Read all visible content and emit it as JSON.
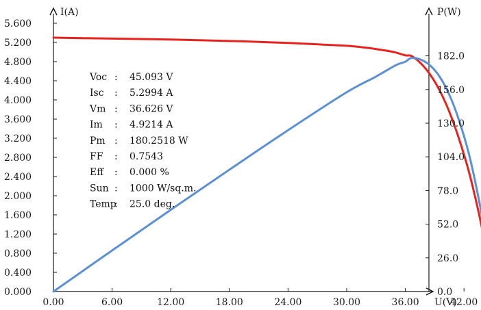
{
  "chart_data": {
    "type": "line",
    "xlabel": "U(V)",
    "ylabel": "I(A)",
    "y2label": "P(W)",
    "xlim": [
      0,
      48
    ],
    "ylim": [
      0,
      5.6
    ],
    "y2lim": [
      0,
      208
    ],
    "x_ticks": [
      "0.00",
      "6.00",
      "12.00",
      "18.00",
      "24.00",
      "30.00",
      "36.00",
      "42.00"
    ],
    "y_ticks": [
      "0.000",
      "0.400",
      "0.800",
      "1.200",
      "1.600",
      "2.000",
      "2.400",
      "2.800",
      "3.200",
      "3.600",
      "4.000",
      "4.400",
      "4.800",
      "5.200",
      "5.600"
    ],
    "y2_ticks": [
      "0.0",
      "26.0",
      "52.0",
      "78.0",
      "104.0",
      "130.0",
      "156.0",
      "182.0"
    ],
    "series": [
      {
        "axis": "left",
        "color": "#e8231e",
        "points": [
          [
            0,
            5.3
          ],
          [
            6,
            5.28
          ],
          [
            12,
            5.26
          ],
          [
            18,
            5.23
          ],
          [
            24,
            5.19
          ],
          [
            28,
            5.15
          ],
          [
            30,
            5.13
          ],
          [
            32,
            5.09
          ],
          [
            34,
            5.03
          ],
          [
            35,
            4.99
          ],
          [
            36,
            4.93
          ],
          [
            36.6,
            4.92
          ],
          [
            37.5,
            4.78
          ],
          [
            38.5,
            4.54
          ],
          [
            39.5,
            4.2
          ],
          [
            40.5,
            3.75
          ],
          [
            41.5,
            3.18
          ],
          [
            42.5,
            2.5
          ],
          [
            43.5,
            1.65
          ],
          [
            44.3,
            0.85
          ],
          [
            45.093,
            0.0
          ]
        ]
      },
      {
        "axis": "right",
        "color": "#5b8fd6",
        "points": [
          [
            0,
            0
          ],
          [
            6,
            31.7
          ],
          [
            12,
            63.1
          ],
          [
            18,
            94.1
          ],
          [
            24,
            124.6
          ],
          [
            30,
            153.9
          ],
          [
            33,
            166.0
          ],
          [
            35,
            174.7
          ],
          [
            36,
            177.5
          ],
          [
            36.6,
            180.3
          ],
          [
            37.5,
            179.3
          ],
          [
            38.5,
            174.8
          ],
          [
            39.5,
            166.0
          ],
          [
            40.5,
            151.9
          ],
          [
            41.5,
            132.0
          ],
          [
            42.5,
            106.3
          ],
          [
            43.5,
            71.8
          ],
          [
            44.3,
            37.7
          ],
          [
            45.093,
            0.0
          ]
        ]
      }
    ]
  },
  "parameters": [
    {
      "label": "Voc ",
      "value": "45.093 V"
    },
    {
      "label": "Isc ",
      "value": "5.2994 A"
    },
    {
      "label": "Vm  ",
      "value": "36.626 V"
    },
    {
      "label": "Im  ",
      "value": "4.9214 A"
    },
    {
      "label": "Pm  ",
      "value": "180.2518 W"
    },
    {
      "label": "FF  ",
      "value": "0.7543"
    },
    {
      "label": "Eff ",
      "value": "0.000 %"
    },
    {
      "label": "Sun ",
      "value": "1000 W/sq.m."
    },
    {
      "label": "Temp",
      "value": "25.0 deg."
    }
  ],
  "colors": {
    "axis": "#1a1a1a",
    "text": "#111111"
  }
}
